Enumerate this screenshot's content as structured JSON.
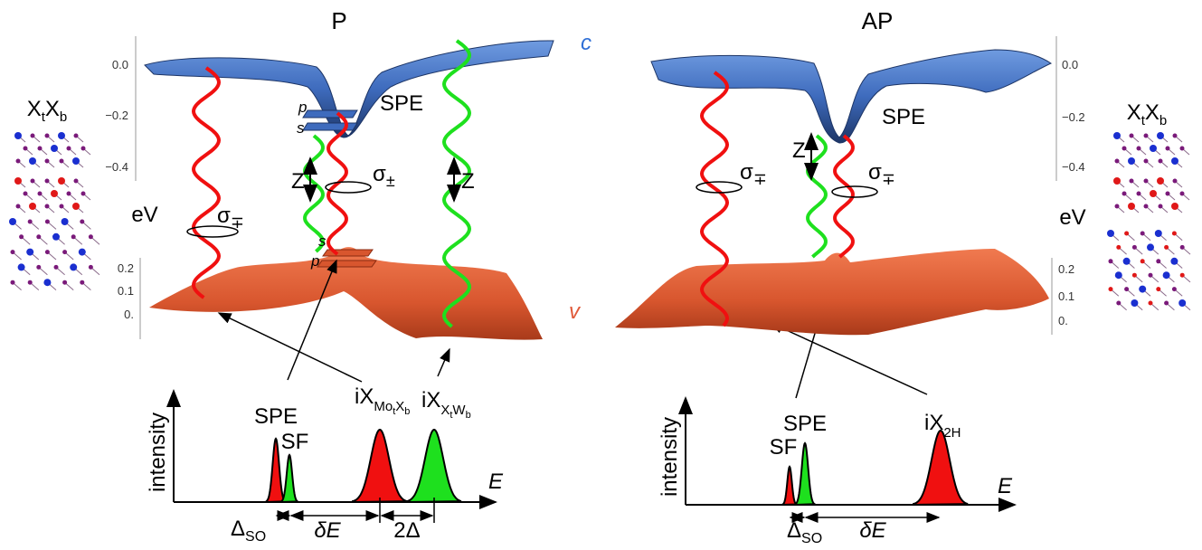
{
  "band_labels": {
    "conduction": "c",
    "valence": "v"
  },
  "panels": [
    {
      "title": "P",
      "unit": "eV",
      "upper_ticks": [
        "0.0",
        "−0.2",
        "−0.4"
      ],
      "lower_ticks": [
        "0.2",
        "0.1",
        "0."
      ],
      "stacking": [
        "X",
        "t",
        "X",
        "b"
      ],
      "orbitals": [
        "p",
        "s",
        "s",
        "p"
      ],
      "surface_labels": [
        "SPE",
        "Z",
        "Z"
      ],
      "polarizations": [
        {
          "symbol": "σ",
          "sub": "±"
        },
        {
          "symbol": "σ",
          "sub": "∓"
        }
      ],
      "spectrum": {
        "y_label": "intensity",
        "x_label": "E",
        "peaks": [
          "SPE",
          "SF"
        ],
        "excitons": [
          [
            "iX",
            "Mo",
            "t",
            "X",
            "b"
          ],
          [
            "iX",
            "X",
            "t",
            "W",
            "b"
          ]
        ],
        "spacings": [
          [
            "Δ",
            "SO"
          ],
          "δE",
          "2Δ"
        ]
      }
    },
    {
      "title": "AP",
      "unit": "eV",
      "upper_ticks": [
        "0.0",
        "−0.2",
        "−0.4"
      ],
      "lower_ticks": [
        "0.2",
        "0.1",
        "0."
      ],
      "stacking": [
        "X",
        "t",
        "X",
        "b"
      ],
      "surface_labels": [
        "SPE",
        "Z"
      ],
      "polarizations": [
        {
          "symbol": "σ",
          "sub": "∓"
        },
        {
          "symbol": "σ",
          "sub": "∓"
        }
      ],
      "spectrum": {
        "y_label": "intensity",
        "x_label": "E",
        "peaks": [
          "SPE",
          "SF"
        ],
        "excitons": [
          [
            "iX",
            "2H"
          ]
        ],
        "spacings": [
          [
            "Δ",
            "SO"
          ],
          "δE"
        ]
      }
    }
  ]
}
